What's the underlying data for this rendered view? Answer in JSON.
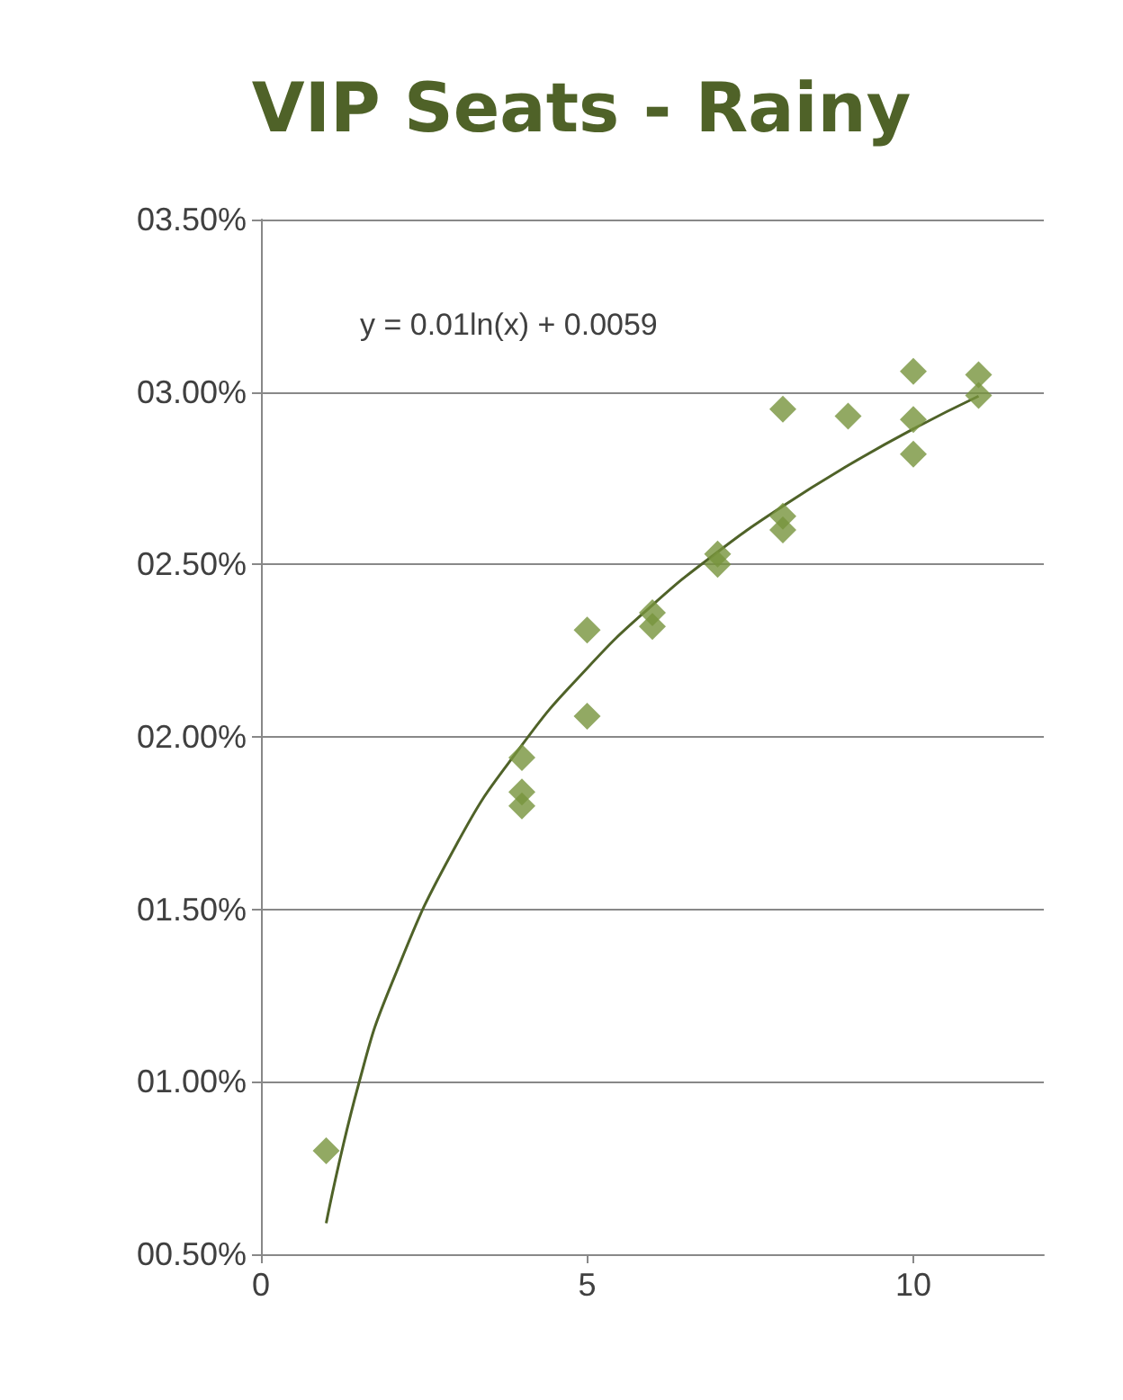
{
  "chart_data": {
    "type": "scatter",
    "title": "VIP Seats - Rainy",
    "marker": "diamond",
    "grid": "y",
    "xlim": [
      0,
      12
    ],
    "xticks": [
      0,
      5,
      10
    ],
    "ylim": [
      0.5,
      3.5
    ],
    "yticks": [
      {
        "value": 0.5,
        "label": "00.50%"
      },
      {
        "value": 1,
        "label": "01.00%"
      },
      {
        "value": 1.5,
        "label": "01.50%"
      },
      {
        "value": 2,
        "label": "02.00%"
      },
      {
        "value": 2.5,
        "label": "02.50%"
      },
      {
        "value": 3,
        "label": "03.00%"
      },
      {
        "value": 3.5,
        "label": "03.50%"
      }
    ],
    "annotations": [
      "y = 0.01ln(x) + 0.0059"
    ],
    "series": [
      {
        "color": "#77933c",
        "x": [
          1,
          4,
          4,
          4,
          5,
          5,
          6,
          6,
          7,
          7,
          8,
          8,
          8,
          9,
          10,
          10,
          10,
          11,
          11
        ],
        "values": [
          0.8,
          1.94,
          1.84,
          1.8,
          2.31,
          2.06,
          2.36,
          2.32,
          2.53,
          2.5,
          2.95,
          2.64,
          2.6,
          2.93,
          3.06,
          2.92,
          2.82,
          3.05,
          2.99
        ]
      },
      {
        "type": "line",
        "color": "#4f6228",
        "marker": "none",
        "x": [
          1,
          1.5,
          2,
          3,
          4,
          5,
          6,
          7,
          8,
          9,
          10,
          11
        ],
        "values": [
          0.59,
          0.995,
          1.283,
          1.689,
          1.976,
          2.199,
          2.382,
          2.536,
          2.669,
          2.787,
          2.893,
          2.988
        ]
      }
    ]
  }
}
